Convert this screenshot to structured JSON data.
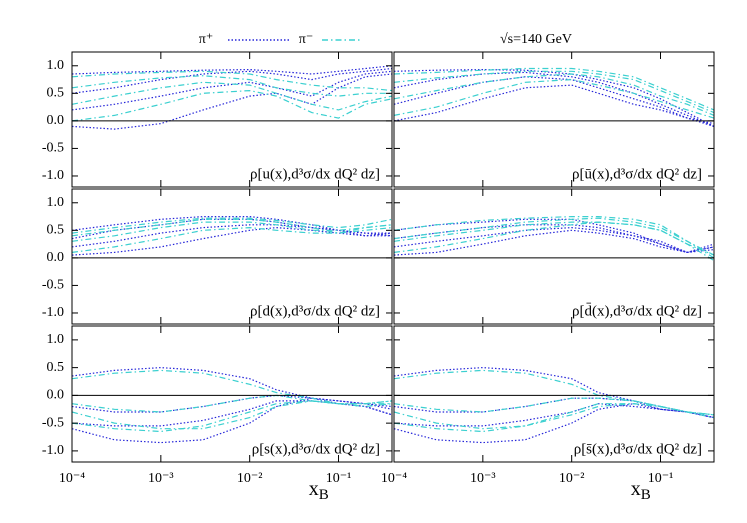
{
  "chart_data": {
    "type": "line",
    "annotation": "√s=140 GeV",
    "xlabel": "x",
    "xlabel_subscript": "B",
    "log_x": true,
    "zero_line": true,
    "xlim": [
      0.0001,
      0.4
    ],
    "xticks": [
      {
        "value": 0.0001,
        "label": "10⁻⁴"
      },
      {
        "value": 0.001,
        "label": "10⁻³"
      },
      {
        "value": 0.01,
        "label": "10⁻²"
      },
      {
        "value": 0.1,
        "label": "10⁻¹"
      }
    ],
    "ylim": [
      -1.2,
      1.25
    ],
    "yticks": [
      {
        "value": 1,
        "label": "1.0"
      },
      0.5,
      {
        "value": 0,
        "label": "0.0"
      },
      -0.5,
      {
        "value": -1,
        "label": "-1.0"
      }
    ],
    "x": [
      0.0001,
      0.0003,
      0.001,
      0.003,
      0.01,
      0.02,
      0.05,
      0.1,
      0.2,
      0.4
    ],
    "series": [
      {
        "name": "π⁺",
        "color": "#2626d9",
        "dash": "dotted"
      },
      {
        "name": "π⁻",
        "color": "#3cd0d0",
        "dash": "dash-dot"
      }
    ],
    "panels": [
      {
        "label": "ρ[u(x),d³σ/dx dQ² dz]",
        "series": [
          {
            "curves": [
              [
                0.85,
                0.88,
                0.9,
                0.92,
                0.93,
                0.9,
                0.85,
                0.9,
                0.95,
                1.0
              ],
              [
                0.5,
                0.6,
                0.75,
                0.85,
                0.9,
                0.85,
                0.75,
                0.85,
                0.9,
                0.95
              ],
              [
                0.2,
                0.3,
                0.45,
                0.6,
                0.7,
                0.6,
                0.45,
                0.7,
                0.85,
                0.9
              ],
              [
                -0.1,
                -0.15,
                -0.05,
                0.2,
                0.45,
                0.5,
                0.3,
                0.6,
                0.8,
                0.85
              ]
            ]
          },
          {
            "curves": [
              [
                0.8,
                0.85,
                0.88,
                0.9,
                0.85,
                0.75,
                0.65,
                0.6,
                0.6,
                0.55
              ],
              [
                0.6,
                0.7,
                0.78,
                0.82,
                0.75,
                0.6,
                0.5,
                0.45,
                0.5,
                0.5
              ],
              [
                0.3,
                0.45,
                0.6,
                0.7,
                0.65,
                0.5,
                0.3,
                0.2,
                0.35,
                0.45
              ],
              [
                0.0,
                0.1,
                0.3,
                0.5,
                0.55,
                0.45,
                0.15,
                0.05,
                0.3,
                0.4
              ]
            ]
          }
        ]
      },
      {
        "label": "ρ[ū(x),d³σ/dx dQ² dz]",
        "series": [
          {
            "curves": [
              [
                0.9,
                0.92,
                0.93,
                0.92,
                0.85,
                0.75,
                0.6,
                0.4,
                0.15,
                -0.1
              ],
              [
                0.6,
                0.75,
                0.85,
                0.88,
                0.8,
                0.7,
                0.5,
                0.3,
                0.1,
                -0.1
              ],
              [
                0.3,
                0.5,
                0.7,
                0.8,
                0.75,
                0.6,
                0.4,
                0.25,
                0.05,
                -0.1
              ],
              [
                0.0,
                0.15,
                0.4,
                0.6,
                0.65,
                0.5,
                0.3,
                0.2,
                0.05,
                -0.05
              ]
            ]
          },
          {
            "curves": [
              [
                0.85,
                0.88,
                0.92,
                0.95,
                0.95,
                0.9,
                0.8,
                0.6,
                0.4,
                0.2
              ],
              [
                0.7,
                0.78,
                0.85,
                0.9,
                0.9,
                0.85,
                0.75,
                0.55,
                0.35,
                0.15
              ],
              [
                0.4,
                0.55,
                0.7,
                0.8,
                0.85,
                0.8,
                0.65,
                0.45,
                0.3,
                0.1
              ],
              [
                0.1,
                0.25,
                0.5,
                0.7,
                0.75,
                0.65,
                0.5,
                0.35,
                0.2,
                0.05
              ]
            ]
          }
        ]
      },
      {
        "label": "ρ[d(x),d³σ/dx dQ² dz]",
        "series": [
          {
            "curves": [
              [
                0.5,
                0.6,
                0.7,
                0.75,
                0.75,
                0.7,
                0.6,
                0.5,
                0.45,
                0.45
              ],
              [
                0.35,
                0.5,
                0.6,
                0.7,
                0.7,
                0.65,
                0.55,
                0.5,
                0.4,
                0.4
              ],
              [
                0.05,
                0.1,
                0.2,
                0.35,
                0.5,
                0.55,
                0.5,
                0.45,
                0.4,
                0.45
              ],
              [
                0.2,
                0.3,
                0.45,
                0.55,
                0.6,
                0.6,
                0.55,
                0.5,
                0.45,
                0.4
              ]
            ]
          },
          {
            "curves": [
              [
                0.45,
                0.55,
                0.65,
                0.72,
                0.72,
                0.68,
                0.6,
                0.55,
                0.6,
                0.7
              ],
              [
                0.3,
                0.4,
                0.55,
                0.65,
                0.65,
                0.6,
                0.5,
                0.5,
                0.55,
                0.6
              ],
              [
                0.1,
                0.2,
                0.35,
                0.5,
                0.55,
                0.5,
                0.45,
                0.45,
                0.5,
                0.55
              ],
              [
                0.4,
                0.5,
                0.6,
                0.7,
                0.7,
                0.65,
                0.55,
                0.45,
                0.55,
                0.6
              ]
            ]
          }
        ]
      },
      {
        "label": "ρ[d̄(x),d³σ/dx dQ² dz]",
        "series": [
          {
            "curves": [
              [
                0.5,
                0.6,
                0.65,
                0.7,
                0.7,
                0.6,
                0.45,
                0.25,
                0.1,
                0.2
              ],
              [
                0.35,
                0.45,
                0.55,
                0.6,
                0.6,
                0.55,
                0.4,
                0.25,
                0.1,
                0.25
              ],
              [
                0.05,
                0.1,
                0.25,
                0.4,
                0.5,
                0.45,
                0.35,
                0.2,
                0.1,
                0.2
              ],
              [
                0.2,
                0.3,
                0.4,
                0.5,
                0.55,
                0.5,
                0.4,
                0.3,
                0.1,
                0.15
              ]
            ]
          },
          {
            "curves": [
              [
                0.5,
                0.6,
                0.68,
                0.72,
                0.75,
                0.75,
                0.7,
                0.6,
                0.3,
                0.05
              ],
              [
                0.35,
                0.45,
                0.55,
                0.65,
                0.7,
                0.72,
                0.65,
                0.55,
                0.3,
                0.0
              ],
              [
                0.1,
                0.2,
                0.35,
                0.5,
                0.6,
                0.65,
                0.6,
                0.5,
                0.25,
                -0.05
              ],
              [
                0.3,
                0.4,
                0.5,
                0.6,
                0.65,
                0.65,
                0.6,
                0.5,
                0.25,
                0.05
              ]
            ]
          }
        ]
      },
      {
        "label": "ρ[s(x),d³σ/dx dQ² dz]",
        "series": [
          {
            "curves": [
              [
                0.35,
                0.45,
                0.5,
                0.45,
                0.3,
                0.1,
                -0.05,
                -0.1,
                -0.15,
                -0.2
              ],
              [
                -0.5,
                -0.55,
                -0.55,
                -0.45,
                -0.25,
                -0.1,
                -0.1,
                -0.15,
                -0.2,
                -0.35
              ],
              [
                -0.6,
                -0.8,
                -0.85,
                -0.8,
                -0.5,
                -0.2,
                -0.05,
                -0.15,
                -0.2,
                -0.35
              ],
              [
                -0.2,
                -0.3,
                -0.3,
                -0.2,
                -0.05,
                0.0,
                -0.05,
                -0.1,
                -0.15,
                -0.25
              ]
            ]
          },
          {
            "curves": [
              [
                0.3,
                0.4,
                0.45,
                0.4,
                0.2,
                0.05,
                -0.05,
                -0.15,
                -0.15,
                -0.15
              ],
              [
                -0.3,
                -0.5,
                -0.6,
                -0.6,
                -0.4,
                -0.2,
                -0.1,
                -0.15,
                -0.15,
                -0.1
              ],
              [
                -0.5,
                -0.6,
                -0.65,
                -0.55,
                -0.3,
                -0.15,
                -0.1,
                -0.15,
                -0.15,
                -0.1
              ],
              [
                -0.15,
                -0.25,
                -0.3,
                -0.2,
                -0.05,
                0.0,
                -0.1,
                -0.15,
                -0.2,
                -0.15
              ]
            ]
          }
        ]
      },
      {
        "label": "ρ[s̄(x),d³σ/dx dQ² dz]",
        "series": [
          {
            "curves": [
              [
                0.35,
                0.45,
                0.5,
                0.45,
                0.3,
                0.05,
                -0.1,
                -0.25,
                -0.3,
                -0.4
              ],
              [
                -0.5,
                -0.55,
                -0.55,
                -0.45,
                -0.3,
                -0.15,
                -0.2,
                -0.25,
                -0.3,
                -0.4
              ],
              [
                -0.6,
                -0.8,
                -0.85,
                -0.8,
                -0.5,
                -0.25,
                -0.15,
                -0.25,
                -0.3,
                -0.4
              ],
              [
                -0.2,
                -0.3,
                -0.3,
                -0.2,
                -0.05,
                -0.05,
                -0.1,
                -0.2,
                -0.3,
                -0.4
              ]
            ]
          },
          {
            "curves": [
              [
                0.3,
                0.4,
                0.45,
                0.4,
                0.2,
                0.0,
                -0.1,
                -0.2,
                -0.3,
                -0.35
              ],
              [
                -0.3,
                -0.5,
                -0.6,
                -0.55,
                -0.35,
                -0.2,
                -0.15,
                -0.2,
                -0.3,
                -0.35
              ],
              [
                -0.5,
                -0.6,
                -0.65,
                -0.55,
                -0.3,
                -0.15,
                -0.15,
                -0.2,
                -0.3,
                -0.4
              ],
              [
                -0.15,
                -0.25,
                -0.3,
                -0.2,
                -0.05,
                -0.05,
                -0.1,
                -0.2,
                -0.3,
                -0.35
              ]
            ]
          }
        ]
      }
    ]
  }
}
